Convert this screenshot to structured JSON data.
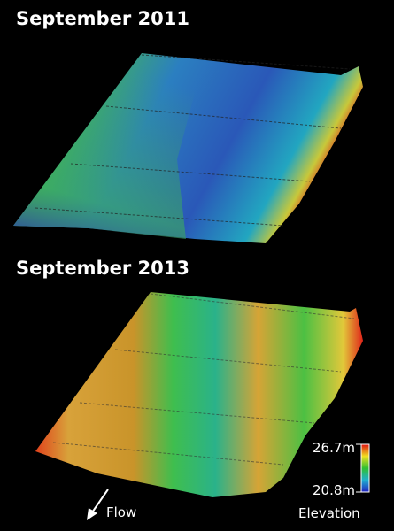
{
  "panels": [
    {
      "title": "September 2011"
    },
    {
      "title": "September 2013"
    }
  ],
  "legend": {
    "max_label": "26.7m",
    "min_label": "20.8m",
    "title": "Elevation"
  },
  "flow_label": "Flow"
}
